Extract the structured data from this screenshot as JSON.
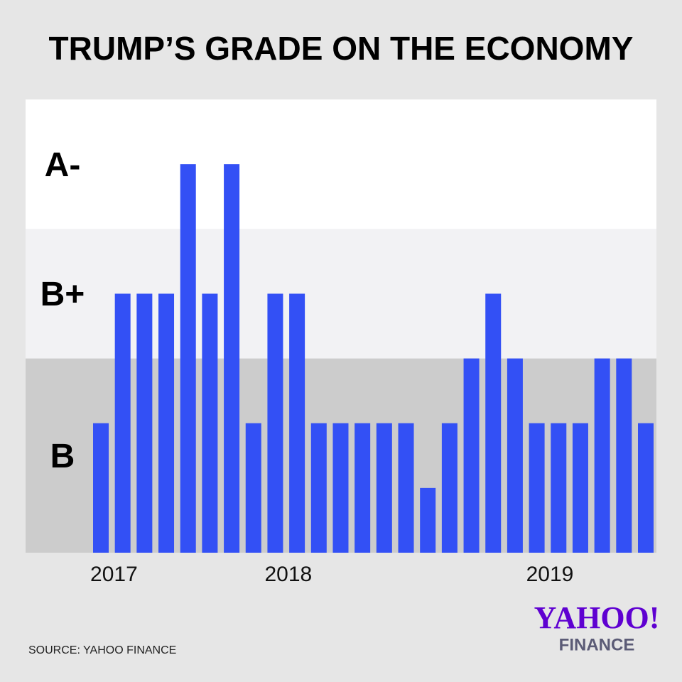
{
  "chart_data": {
    "type": "bar",
    "title": "TRUMP’S GRADE ON THE ECONOMY",
    "categories": [
      null,
      "2017",
      null,
      null,
      null,
      null,
      null,
      null,
      null,
      "2018",
      null,
      null,
      null,
      null,
      null,
      null,
      null,
      null,
      null,
      null,
      null,
      "2019",
      null,
      null,
      null,
      null
    ],
    "values": [
      2,
      4,
      4,
      4,
      6,
      4,
      6,
      2,
      4,
      4,
      2,
      2,
      2,
      2,
      2,
      1,
      2,
      3,
      4,
      3,
      2,
      2,
      2,
      3,
      3,
      2
    ],
    "color": "#3350f5",
    "ylim": [
      0,
      7
    ],
    "bands": [
      {
        "label": "B",
        "from": 0,
        "to": 3,
        "color": "#cccccc"
      },
      {
        "label": "B+",
        "from": 3,
        "to": 5,
        "color": "#f2f2f4"
      },
      {
        "label": "A-",
        "from": 5,
        "to": 7,
        "color": "#ffffff"
      }
    ],
    "source": "SOURCE: YAHOO FINANCE",
    "logo": {
      "top": "YAHOO!",
      "bottom": "FINANCE"
    }
  }
}
